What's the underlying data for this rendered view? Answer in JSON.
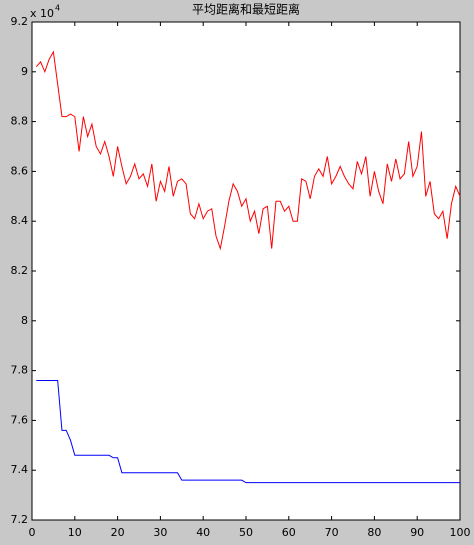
{
  "chart_data": {
    "type": "line",
    "title": "平均距离和最短距离",
    "y_multiplier": "x 10",
    "y_multiplier_exp": "4",
    "x": [
      1,
      2,
      3,
      4,
      5,
      6,
      7,
      8,
      9,
      10,
      11,
      12,
      13,
      14,
      15,
      16,
      17,
      18,
      19,
      20,
      21,
      22,
      23,
      24,
      25,
      26,
      27,
      28,
      29,
      30,
      31,
      32,
      33,
      34,
      35,
      36,
      37,
      38,
      39,
      40,
      41,
      42,
      43,
      44,
      45,
      46,
      47,
      48,
      49,
      50,
      51,
      52,
      53,
      54,
      55,
      56,
      57,
      58,
      59,
      60,
      61,
      62,
      63,
      64,
      65,
      66,
      67,
      68,
      69,
      70,
      71,
      72,
      73,
      74,
      75,
      76,
      77,
      78,
      79,
      80,
      81,
      82,
      83,
      84,
      85,
      86,
      87,
      88,
      89,
      90,
      91,
      92,
      93,
      94,
      95,
      96,
      97,
      98,
      99,
      100
    ],
    "series": [
      {
        "color": "#ff0000",
        "values": [
          9.02,
          9.04,
          9.0,
          9.05,
          9.08,
          8.95,
          8.82,
          8.82,
          8.83,
          8.82,
          8.68,
          8.82,
          8.74,
          8.79,
          8.7,
          8.67,
          8.72,
          8.66,
          8.58,
          8.7,
          8.62,
          8.55,
          8.58,
          8.63,
          8.57,
          8.59,
          8.54,
          8.63,
          8.48,
          8.56,
          8.52,
          8.62,
          8.5,
          8.56,
          8.57,
          8.55,
          8.43,
          8.41,
          8.47,
          8.41,
          8.44,
          8.45,
          8.34,
          8.29,
          8.38,
          8.48,
          8.55,
          8.52,
          8.46,
          8.49,
          8.4,
          8.44,
          8.35,
          8.45,
          8.46,
          8.29,
          8.48,
          8.48,
          8.44,
          8.46,
          8.4,
          8.4,
          8.57,
          8.56,
          8.49,
          8.58,
          8.61,
          8.58,
          8.66,
          8.55,
          8.58,
          8.62,
          8.58,
          8.55,
          8.53,
          8.64,
          8.59,
          8.66,
          8.5,
          8.6,
          8.52,
          8.47,
          8.63,
          8.56,
          8.65,
          8.57,
          8.59,
          8.72,
          8.58,
          8.62,
          8.76,
          8.5,
          8.56,
          8.43,
          8.41,
          8.44,
          8.33,
          8.47,
          8.54,
          8.5
        ]
      },
      {
        "color": "#0000ff",
        "values": [
          7.76,
          7.76,
          7.76,
          7.76,
          7.76,
          7.76,
          7.56,
          7.56,
          7.52,
          7.46,
          7.46,
          7.46,
          7.46,
          7.46,
          7.46,
          7.46,
          7.46,
          7.46,
          7.45,
          7.45,
          7.39,
          7.39,
          7.39,
          7.39,
          7.39,
          7.39,
          7.39,
          7.39,
          7.39,
          7.39,
          7.39,
          7.39,
          7.39,
          7.39,
          7.36,
          7.36,
          7.36,
          7.36,
          7.36,
          7.36,
          7.36,
          7.36,
          7.36,
          7.36,
          7.36,
          7.36,
          7.36,
          7.36,
          7.36,
          7.35,
          7.35,
          7.35,
          7.35,
          7.35,
          7.35,
          7.35,
          7.35,
          7.35,
          7.35,
          7.35,
          7.35,
          7.35,
          7.35,
          7.35,
          7.35,
          7.35,
          7.35,
          7.35,
          7.35,
          7.35,
          7.35,
          7.35,
          7.35,
          7.35,
          7.35,
          7.35,
          7.35,
          7.35,
          7.35,
          7.35,
          7.35,
          7.35,
          7.35,
          7.35,
          7.35,
          7.35,
          7.35,
          7.35,
          7.35,
          7.35,
          7.35,
          7.35,
          7.35,
          7.35,
          7.35,
          7.35,
          7.35,
          7.35,
          7.35,
          7.35
        ]
      }
    ],
    "xlim": [
      0,
      100
    ],
    "xticks": [
      0,
      10,
      20,
      30,
      40,
      50,
      60,
      70,
      80,
      90,
      100
    ],
    "ylim": [
      7.2,
      9.2
    ],
    "yticks": [
      7.2,
      7.4,
      7.6,
      7.8,
      8,
      8.2,
      8.4,
      8.6,
      8.8,
      9,
      9.2
    ]
  }
}
